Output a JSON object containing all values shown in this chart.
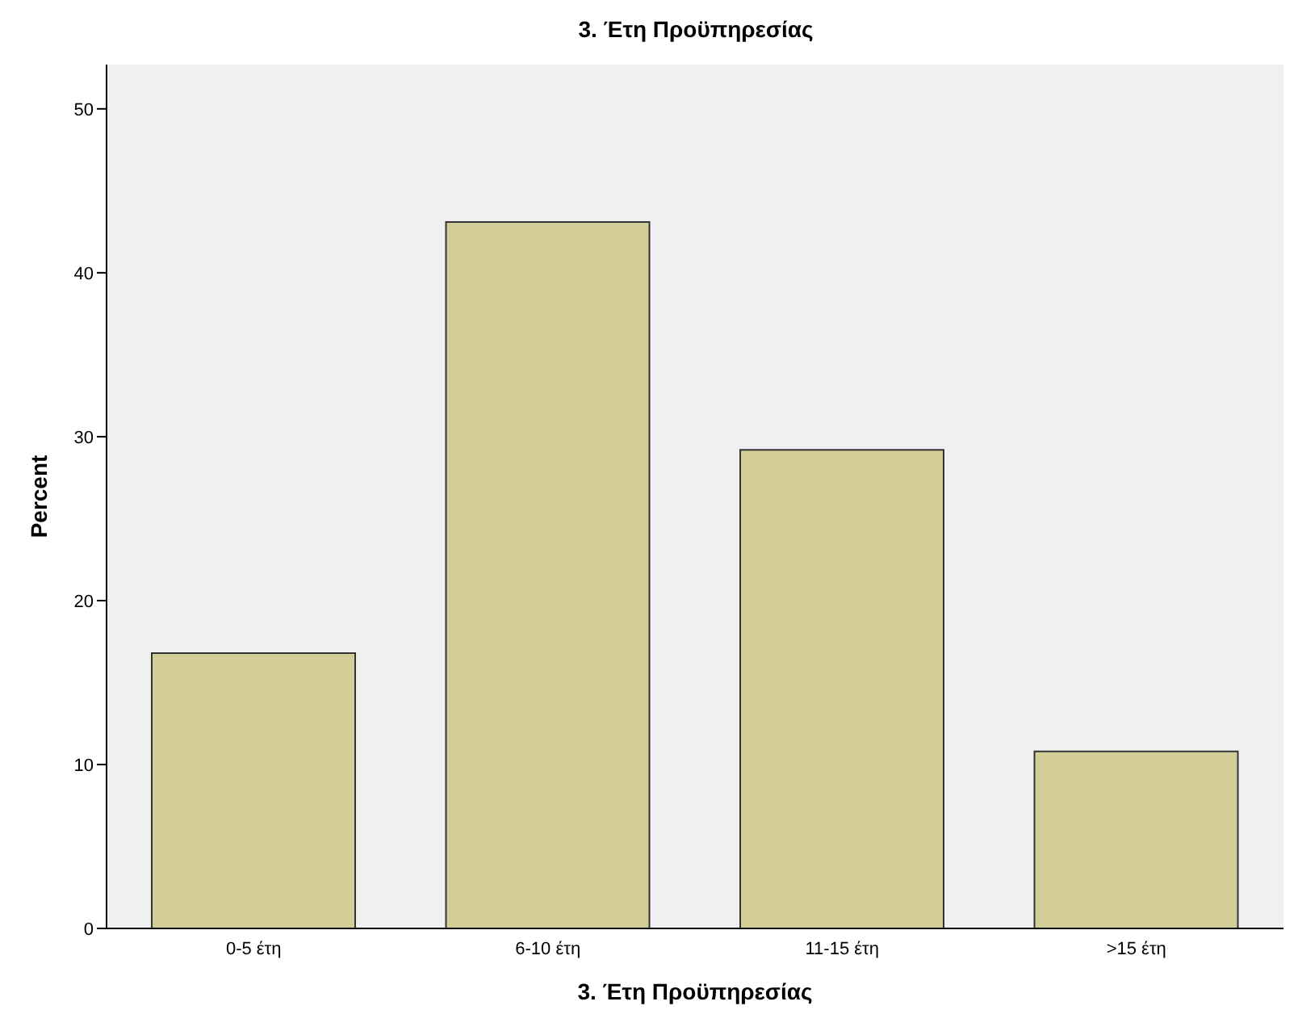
{
  "chart_data": {
    "type": "bar",
    "title": "3. Έτη Προϋπηρεσίας",
    "xlabel": "3. Έτη Προϋπηρεσίας",
    "ylabel": "Percent",
    "categories": [
      "0-5 έτη",
      "6-10 έτη",
      "11-15 έτη",
      ">15 έτη"
    ],
    "values": [
      16.8,
      43.1,
      29.2,
      10.8
    ],
    "color": "#d3ce97",
    "ylim": [
      0,
      52.7
    ],
    "yticks": [
      0,
      10,
      20,
      30,
      40,
      50
    ],
    "grid": false
  }
}
